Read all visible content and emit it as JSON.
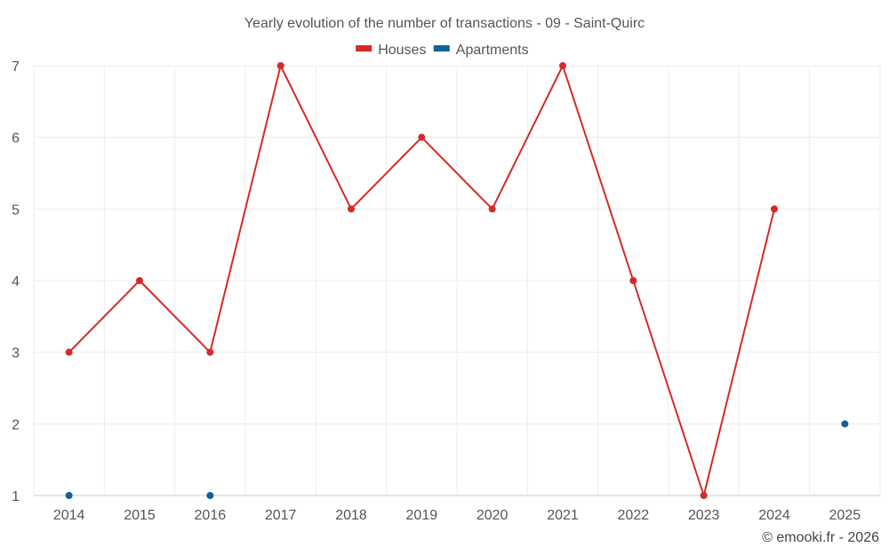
{
  "chart_data": {
    "type": "line",
    "title": "Yearly evolution of the number of transactions - 09 - Saint-Quirc",
    "categories": [
      "2014",
      "2015",
      "2016",
      "2017",
      "2018",
      "2019",
      "2020",
      "2021",
      "2022",
      "2023",
      "2024",
      "2025"
    ],
    "ylim": [
      1,
      7
    ],
    "yticks": [
      1,
      2,
      3,
      4,
      5,
      6,
      7
    ],
    "grid": true,
    "legend_position": "top-center",
    "series": [
      {
        "name": "Houses",
        "color": "#d42a2a",
        "values": [
          3,
          4,
          3,
          7,
          5,
          6,
          5,
          7,
          4,
          1,
          5,
          null
        ]
      },
      {
        "name": "Apartments",
        "color": "#0e6496",
        "values": [
          1,
          null,
          1,
          null,
          null,
          null,
          null,
          null,
          null,
          null,
          null,
          2
        ]
      }
    ]
  },
  "credit": "© emooki.fr - 2026"
}
